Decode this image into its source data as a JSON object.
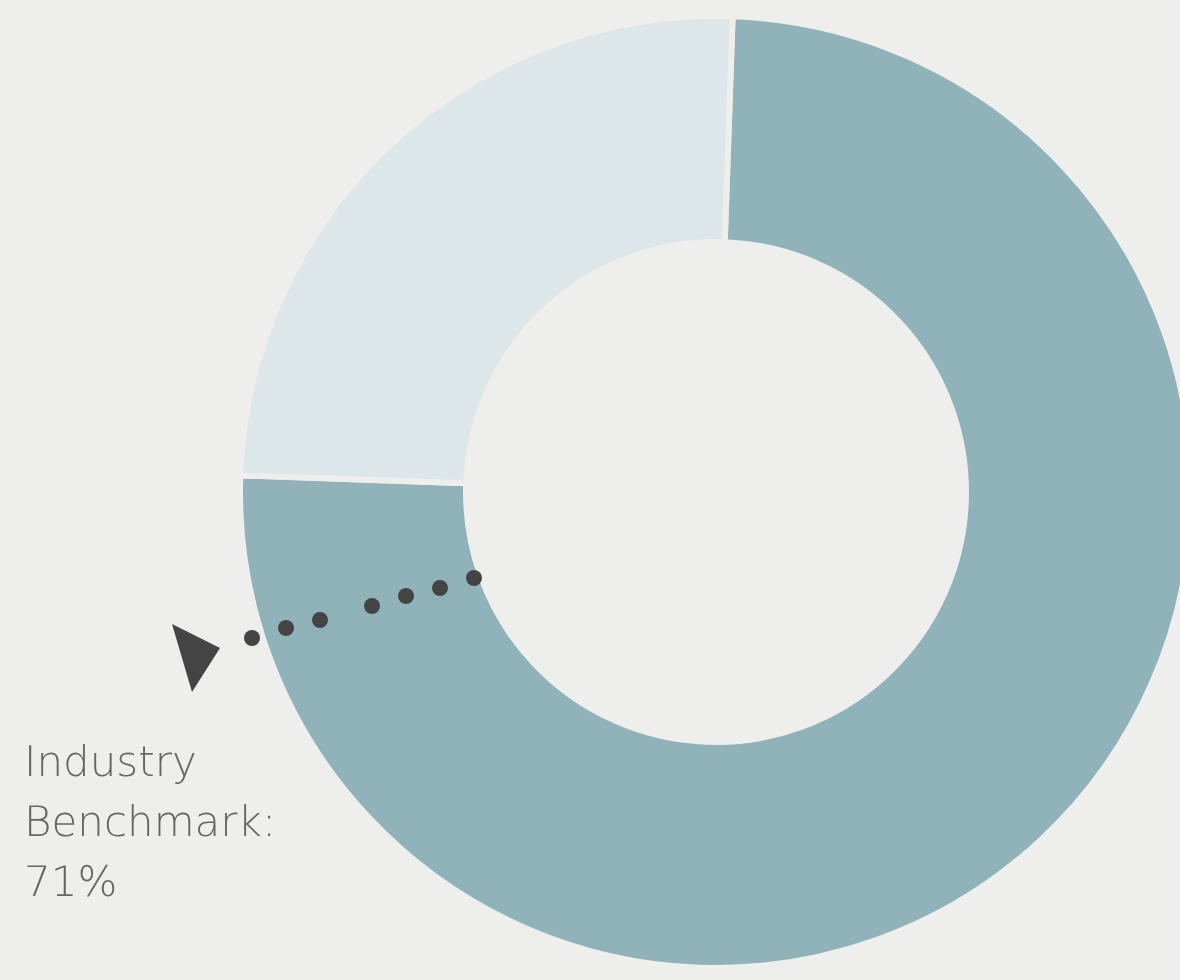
{
  "chart_data": {
    "type": "donut",
    "categories": [
      null,
      null
    ],
    "values": [
      75,
      25
    ],
    "colors": [
      "#8fb3b8",
      "#dde6e8"
    ],
    "annotations": [
      "Industry Benchmark: 71%"
    ]
  }
}
